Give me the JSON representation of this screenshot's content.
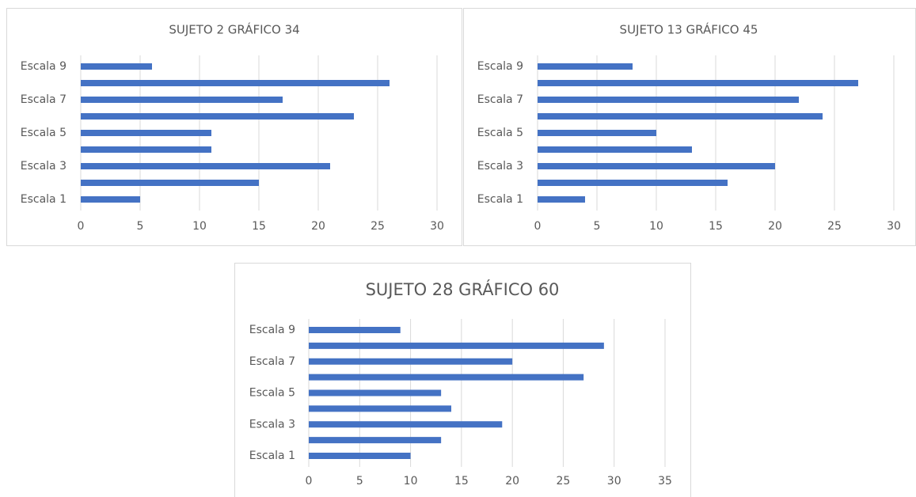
{
  "chart_data": [
    {
      "type": "bar",
      "orientation": "horizontal",
      "title": "SUJETO 2 GRÁFICO 34",
      "categories": [
        "Escala 1",
        null,
        "Escala 3",
        null,
        "Escala 5",
        null,
        "Escala 7",
        null,
        "Escala 9"
      ],
      "values": [
        5,
        15,
        21,
        11,
        11,
        23,
        17,
        26,
        6
      ],
      "color": "#4472c4",
      "xlim": [
        0,
        30
      ],
      "xticks": [
        0,
        5,
        10,
        15,
        20,
        25,
        30
      ],
      "grid": true
    },
    {
      "type": "bar",
      "orientation": "horizontal",
      "title": "SUJETO 13 GRÁFICO 45",
      "categories": [
        "Escala 1",
        null,
        "Escala 3",
        null,
        "Escala 5",
        null,
        "Escala 7",
        null,
        "Escala 9"
      ],
      "values": [
        4,
        16,
        20,
        13,
        10,
        24,
        22,
        27,
        8
      ],
      "color": "#4472c4",
      "xlim": [
        0,
        30
      ],
      "xticks": [
        0,
        5,
        10,
        15,
        20,
        25,
        30
      ],
      "grid": true
    },
    {
      "type": "bar",
      "orientation": "horizontal",
      "title": "SUJETO 28 GRÁFICO 60",
      "categories": [
        "Escala 1",
        null,
        "Escala 3",
        null,
        "Escala 5",
        null,
        "Escala 7",
        null,
        "Escala 9"
      ],
      "values": [
        10,
        13,
        19,
        14,
        13,
        27,
        20,
        29,
        9
      ],
      "color": "#4472c4",
      "xlim": [
        0,
        35
      ],
      "xticks": [
        0,
        5,
        10,
        15,
        20,
        25,
        30,
        35
      ],
      "grid": true
    }
  ]
}
